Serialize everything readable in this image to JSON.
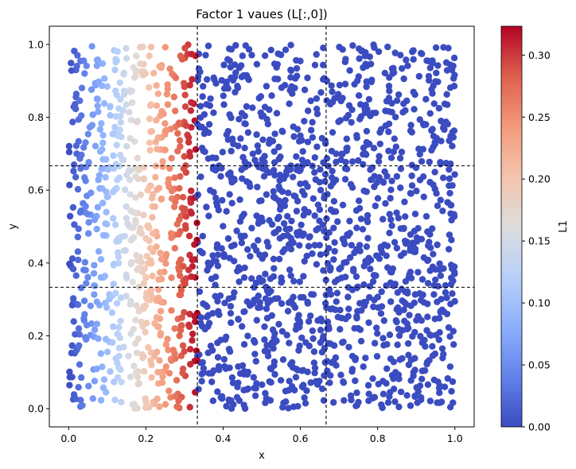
{
  "chart_data": {
    "type": "scatter",
    "title": "Factor 1 vaues (L[:,0])",
    "xlabel": "x",
    "ylabel": "y",
    "xlim": [
      -0.05,
      1.05
    ],
    "ylim": [
      -0.05,
      1.05
    ],
    "x_ticks": [
      "0.0",
      "0.2",
      "0.4",
      "0.6",
      "0.8",
      "1.0"
    ],
    "y_ticks": [
      "0.0",
      "0.2",
      "0.4",
      "0.6",
      "0.8",
      "1.0"
    ],
    "grid": false,
    "colormap": "coolwarm",
    "point_count": 2000,
    "point_distribution": "uniform random over [0,1] x [0,1]",
    "color_rule": "L1 = 1/3 - x for x < 1/3 (value cycles within each third), 0 for x >= 1/3",
    "reference_lines": {
      "vertical": [
        0.3333,
        0.6667
      ],
      "horizontal": [
        0.3333,
        0.6667
      ],
      "style": "dashed",
      "color": "#000000"
    },
    "colorbar": {
      "label": "L1",
      "range": [
        0.0,
        0.3233
      ],
      "ticks": [
        "0.00",
        "0.05",
        "0.10",
        "0.15",
        "0.20",
        "0.25",
        "0.30"
      ]
    },
    "point_color_low": "#3b4cc0",
    "point_color_high": "#b40426"
  }
}
